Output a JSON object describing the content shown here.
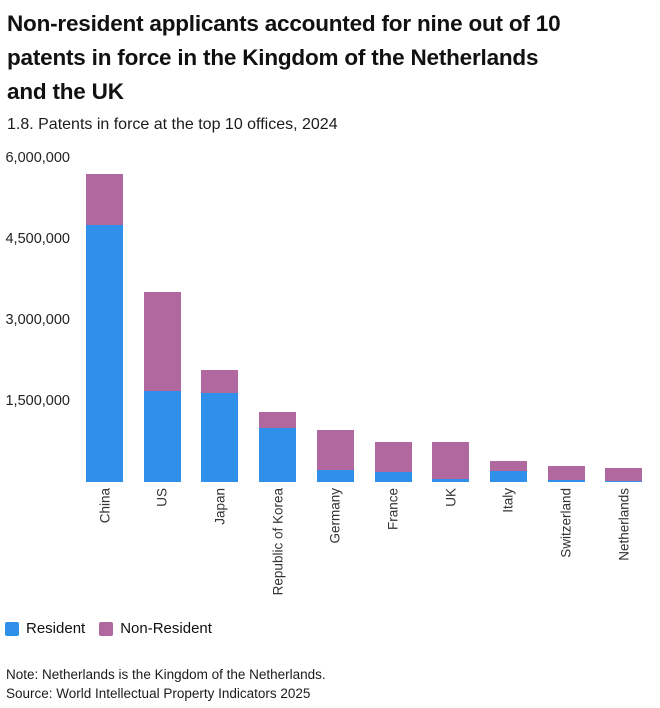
{
  "header": {
    "title_lines": [
      "Non-resident applicants accounted for nine out of 10",
      "patents in force in the Kingdom of the Netherlands",
      "and the UK"
    ],
    "subtitle": "1.8. Patents in force at the top 10 offices, 2024"
  },
  "chart_data": {
    "type": "bar",
    "stacked": true,
    "title": "1.8. Patents in force at the top 10 offices, 2024",
    "categories": [
      "China",
      "US",
      "Japan",
      "Republic of Korea",
      "Germany",
      "France",
      "UK",
      "Italy",
      "Switzerland",
      "Netherlands"
    ],
    "series": [
      {
        "name": "Resident",
        "color": "#2E90E9",
        "values": [
          4760000,
          1690000,
          1650000,
          1000000,
          230000,
          180000,
          60000,
          210000,
          30000,
          20000
        ]
      },
      {
        "name": "Non-Resident",
        "color": "#B1689F",
        "values": [
          950000,
          1820000,
          430000,
          300000,
          730000,
          570000,
          690000,
          180000,
          270000,
          240000
        ]
      }
    ],
    "totals": [
      5710000,
      3510000,
      2080000,
      1300000,
      960000,
      750000,
      750000,
      390000,
      300000,
      260000
    ],
    "xlabel": "",
    "ylabel": "",
    "ylim": [
      0,
      6000000
    ],
    "yticks": [
      {
        "value": 1500000,
        "label": "1,500,000"
      },
      {
        "value": 3000000,
        "label": "3,000,000"
      },
      {
        "value": 4500000,
        "label": "4,500,000"
      },
      {
        "value": 6000000,
        "label": "6,000,000"
      }
    ],
    "grid": false,
    "legend_position": "bottom-left"
  },
  "legend": {
    "items": [
      {
        "label": "Resident",
        "color": "#2E90E9"
      },
      {
        "label": "Non-Resident",
        "color": "#B1689F"
      }
    ]
  },
  "footer": {
    "note": "Note: Netherlands is the Kingdom of the Netherlands.",
    "source": "Source: World Intellectual Property Indicators 2025"
  }
}
